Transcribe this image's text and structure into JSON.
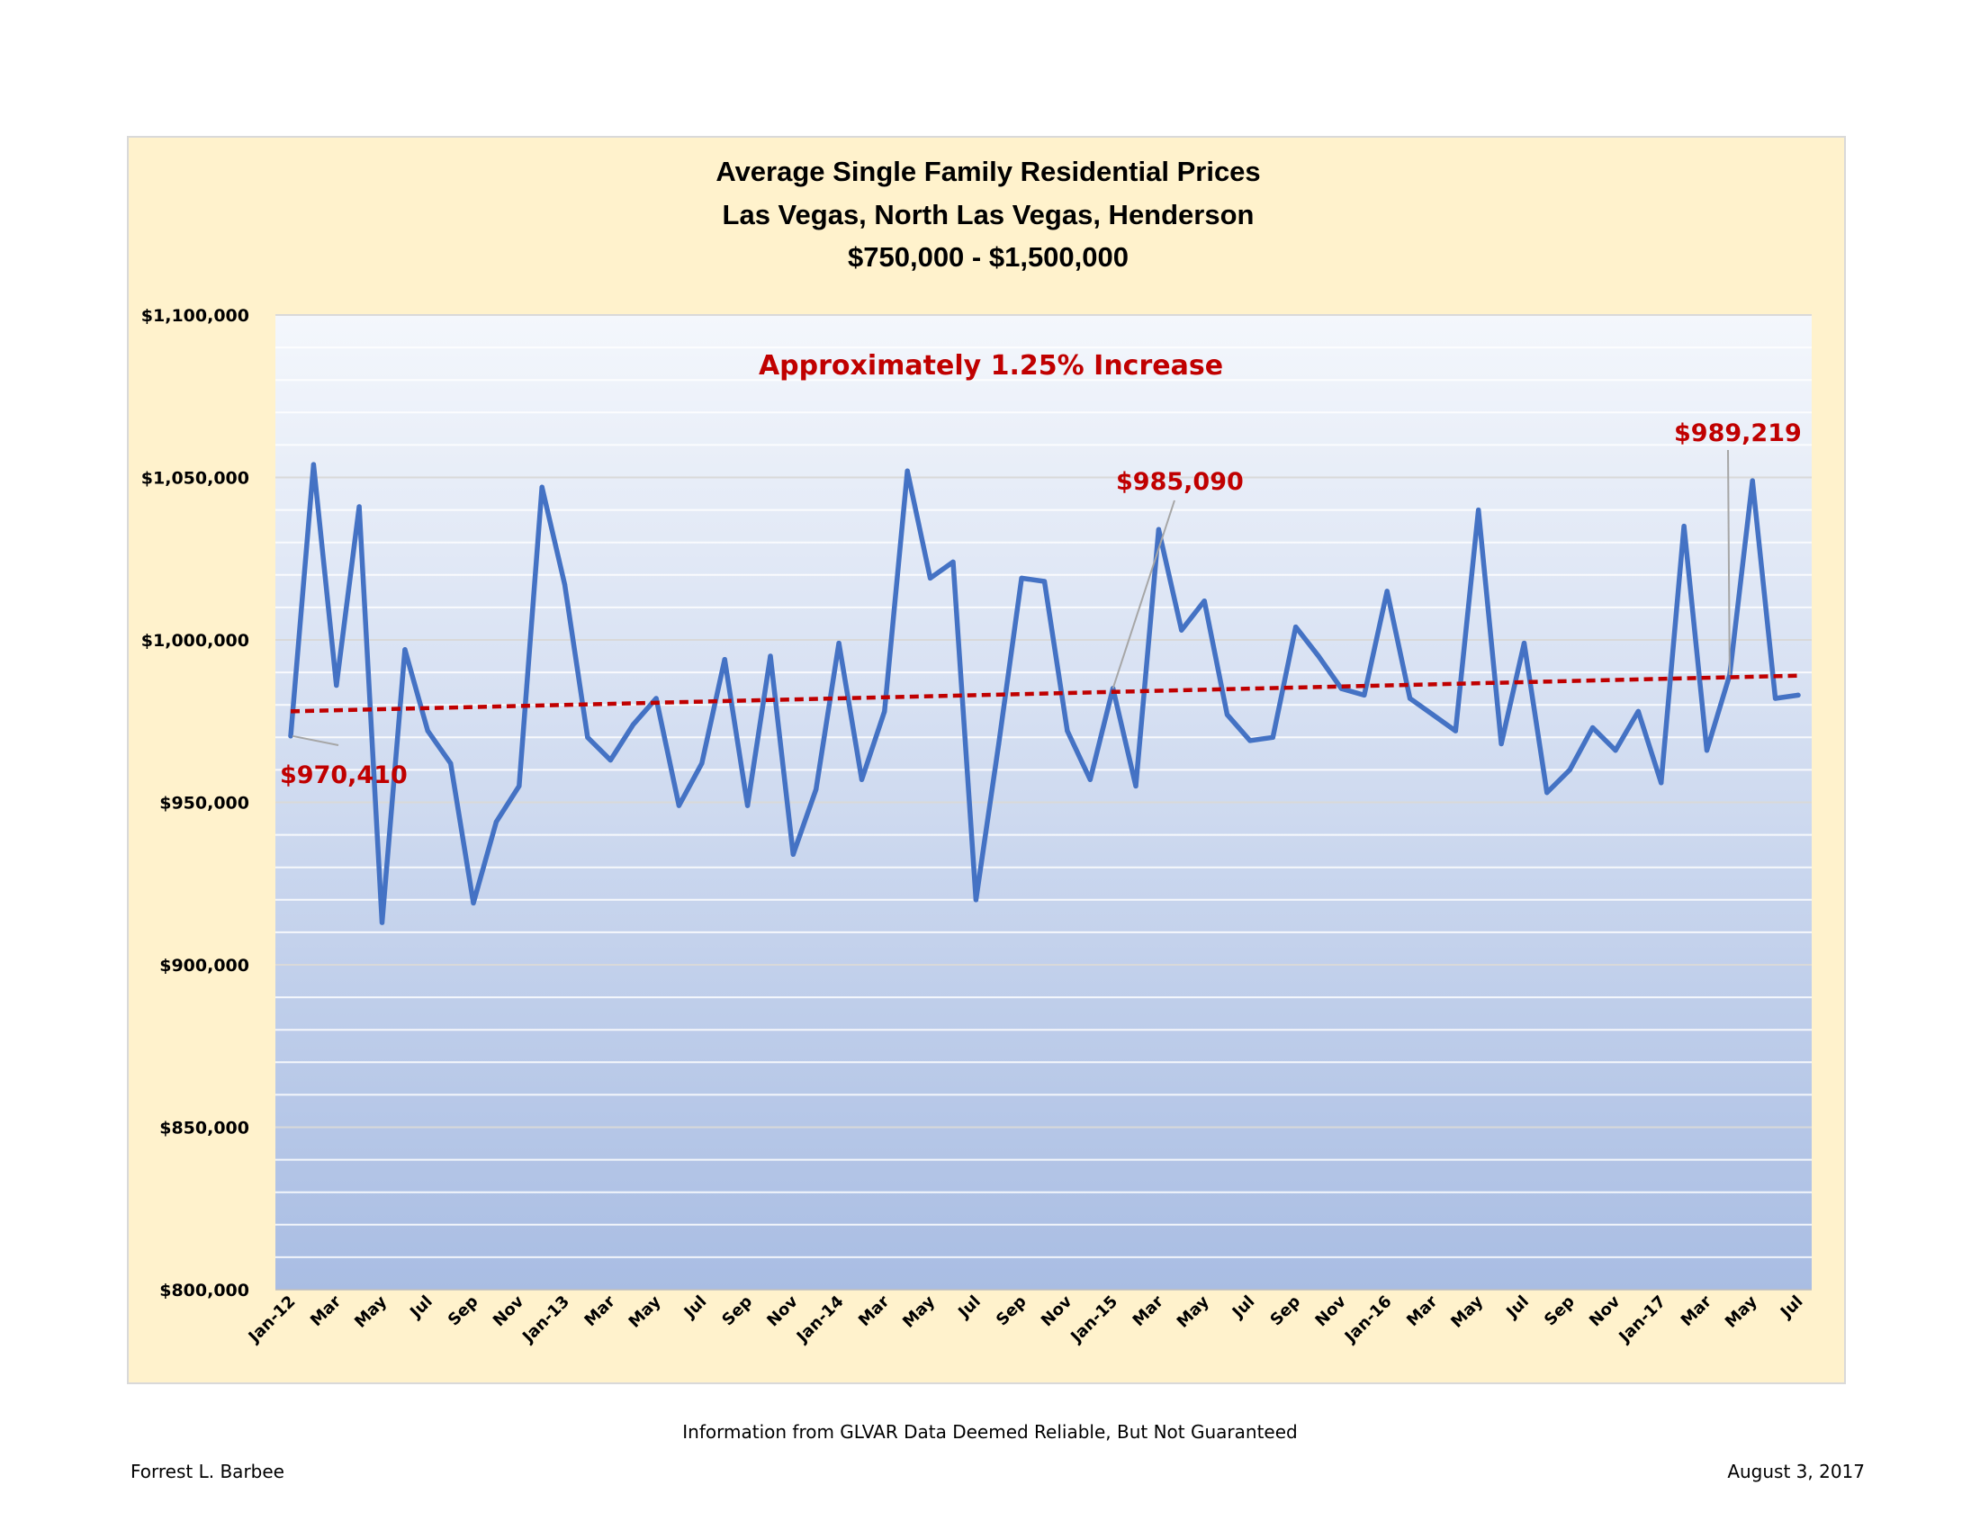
{
  "chart_data": {
    "type": "line",
    "title": "Average Single Family Residential Prices",
    "subtitle": [
      "Las Vegas, North Las Vegas, Henderson",
      "$750,000 - $1,500,000"
    ],
    "xlabel": "",
    "ylabel": "",
    "ylim": [
      800000,
      1100000
    ],
    "yticks": [
      800000,
      850000,
      900000,
      950000,
      1000000,
      1050000,
      1100000
    ],
    "ytick_labels": [
      "$800,000",
      "$850,000",
      "$900,000",
      "$950,000",
      "$1,000,000",
      "$1,050,000",
      "$1,100,000"
    ],
    "x": [
      "2012-01",
      "2012-02",
      "2012-03",
      "2012-04",
      "2012-05",
      "2012-06",
      "2012-07",
      "2012-08",
      "2012-09",
      "2012-10",
      "2012-11",
      "2012-12",
      "2013-01",
      "2013-02",
      "2013-03",
      "2013-04",
      "2013-05",
      "2013-06",
      "2013-07",
      "2013-08",
      "2013-09",
      "2013-10",
      "2013-11",
      "2013-12",
      "2014-01",
      "2014-02",
      "2014-03",
      "2014-04",
      "2014-05",
      "2014-06",
      "2014-07",
      "2014-08",
      "2014-09",
      "2014-10",
      "2014-11",
      "2014-12",
      "2015-01",
      "2015-02",
      "2015-03",
      "2015-04",
      "2015-05",
      "2015-06",
      "2015-07",
      "2015-08",
      "2015-09",
      "2015-10",
      "2015-11",
      "2015-12",
      "2016-01",
      "2016-02",
      "2016-03",
      "2016-04",
      "2016-05",
      "2016-06",
      "2016-07",
      "2016-08",
      "2016-09",
      "2016-10",
      "2016-11",
      "2016-12",
      "2017-01",
      "2017-02",
      "2017-03",
      "2017-04",
      "2017-05",
      "2017-06",
      "2017-07"
    ],
    "x_tick_labels": [
      "Jan-12",
      "Mar",
      "May",
      "Jul",
      "Sep",
      "Nov",
      "Jan-13",
      "Mar",
      "May",
      "Jul",
      "Sep",
      "Nov",
      "Jan-14",
      "Mar",
      "May",
      "Jul",
      "Sep",
      "Nov",
      "Jan-15",
      "Mar",
      "May",
      "Jul",
      "Sep",
      "Nov",
      "Jan-16",
      "Mar",
      "May",
      "Jul",
      "Sep",
      "Nov",
      "Jan-17",
      "Mar",
      "May",
      "Jul"
    ],
    "grid": true,
    "legend": "none",
    "series": [
      {
        "color": "#4472c4",
        "values": [
          970410,
          1054000,
          986000,
          1041000,
          913000,
          997000,
          972000,
          962000,
          919000,
          944000,
          955000,
          1047000,
          1017000,
          970000,
          963000,
          974000,
          982000,
          949000,
          962000,
          994000,
          949000,
          995000,
          934000,
          954000,
          999000,
          957000,
          978000,
          1052000,
          1019000,
          1024000,
          920000,
          968000,
          1019000,
          1018000,
          972000,
          957000,
          985090,
          955000,
          1034000,
          1003000,
          1012000,
          977000,
          969000,
          970000,
          1004000,
          995000,
          985000,
          983000,
          1015000,
          982000,
          977000,
          972000,
          1040000,
          968000,
          999000,
          953000,
          960000,
          973000,
          966000,
          978000,
          956000,
          1035000,
          966000,
          989219,
          1049000,
          982000,
          983000
        ]
      },
      {
        "name": "trend",
        "style": "dashed",
        "color": "#c00000",
        "values_linear": [
          978000,
          989000
        ]
      }
    ],
    "annotations": [
      {
        "text": "Approximately 1.25% Increase"
      },
      {
        "text": "$970,410",
        "point_x": "2012-01"
      },
      {
        "text": "$985,090",
        "point_x": "2015-01"
      },
      {
        "text": "$989,219",
        "point_x": "2017-04"
      }
    ]
  },
  "footer": {
    "source": "Information from GLVAR Data Deemed Reliable, But Not Guaranteed",
    "author": "Forrest L. Barbee",
    "date": "August 3, 2017"
  }
}
